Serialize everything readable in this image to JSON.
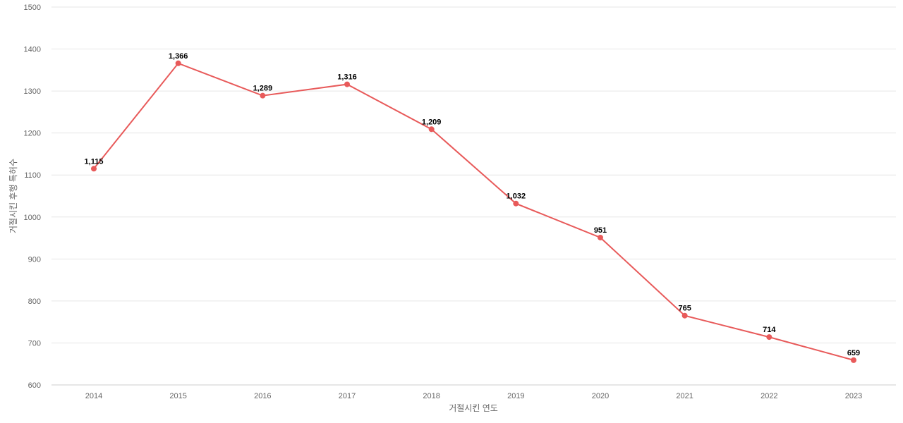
{
  "chart_data": {
    "type": "line",
    "title": "",
    "xlabel": "거절시킨 연도",
    "ylabel": "거절시킨 후행 특허수",
    "x": [
      "2014",
      "2015",
      "2016",
      "2017",
      "2018",
      "2019",
      "2020",
      "2021",
      "2022",
      "2023"
    ],
    "series": [
      {
        "values": [
          1115,
          1366,
          1289,
          1316,
          1209,
          1032,
          951,
          765,
          714,
          659
        ],
        "labels": [
          "1,115",
          "1,366",
          "1,289",
          "1,316",
          "1,209",
          "1,032",
          "951",
          "765",
          "714",
          "659"
        ],
        "color": "#e85a5a"
      }
    ],
    "ylim": [
      600,
      1500
    ],
    "yticks": [
      "600",
      "700",
      "800",
      "900",
      "1000",
      "1100",
      "1200",
      "1300",
      "1400",
      "1500"
    ],
    "grid": true,
    "legend": "none"
  }
}
